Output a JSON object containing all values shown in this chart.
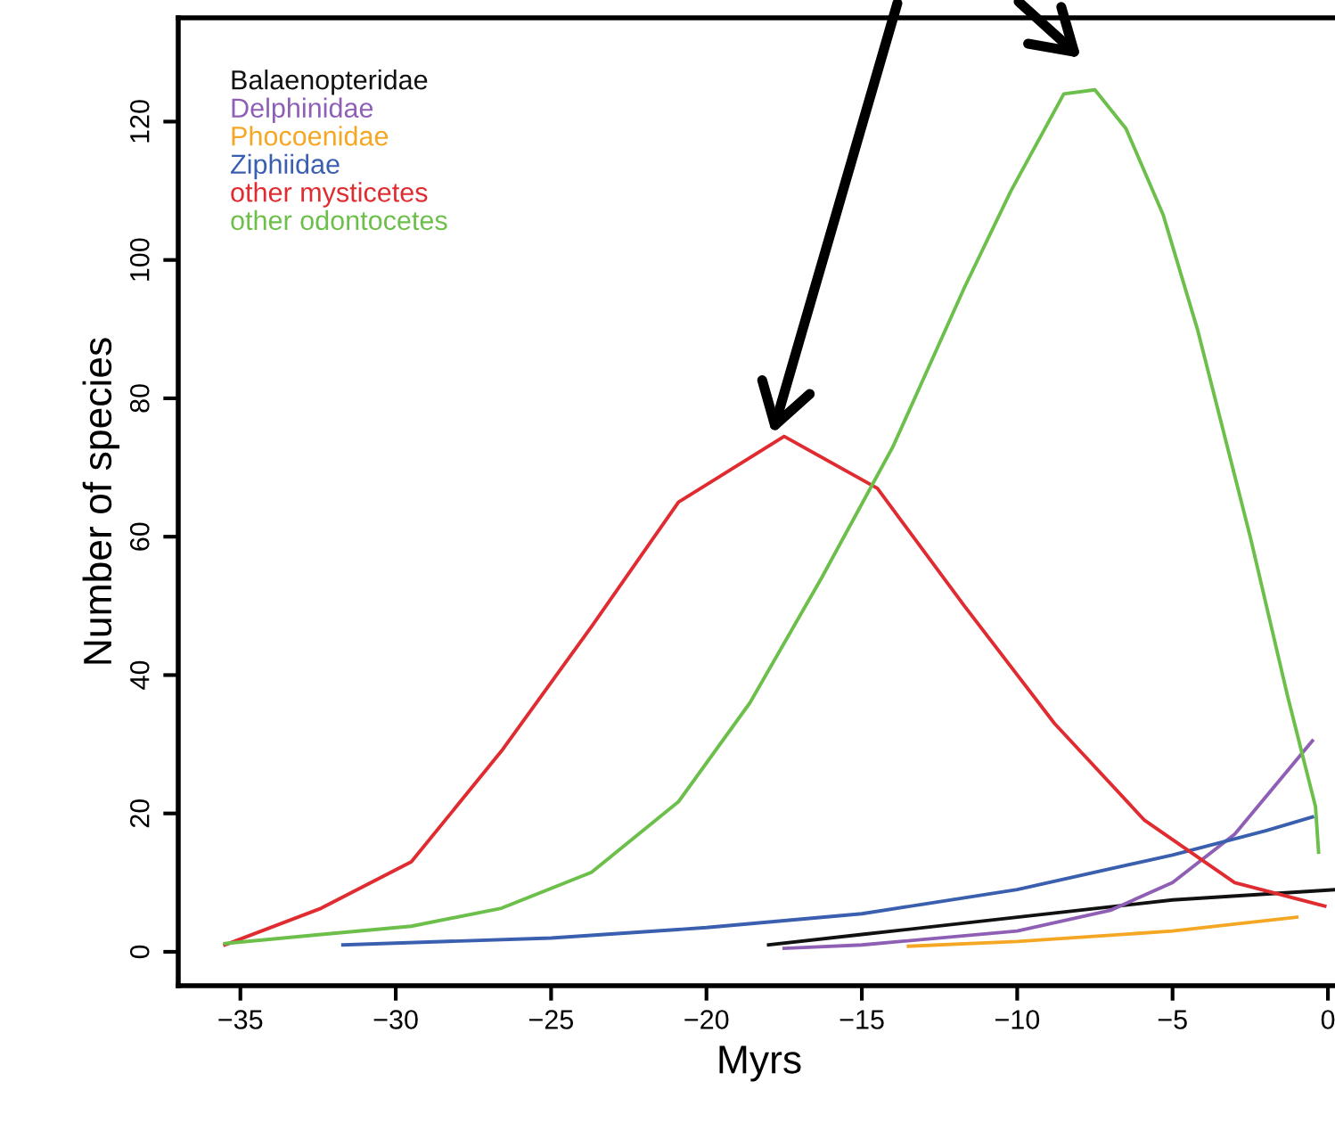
{
  "chart_data": {
    "type": "line",
    "xlabel": "Myrs",
    "ylabel": "Number of species",
    "xlim": [
      -37,
      0.4
    ],
    "ylim": [
      -4.9,
      135
    ],
    "xticks": [
      {
        "value": -35,
        "label": "−35"
      },
      {
        "value": -30,
        "label": "−30"
      },
      {
        "value": -25,
        "label": "−25"
      },
      {
        "value": -20,
        "label": "−20"
      },
      {
        "value": -15,
        "label": "−15"
      },
      {
        "value": -10,
        "label": "−10"
      },
      {
        "value": -5,
        "label": "−5"
      },
      0
    ],
    "yticks": [
      0,
      20,
      40,
      60,
      80,
      100,
      120
    ],
    "grid": false,
    "legend": "top left",
    "marker": "none",
    "line_style": "solid",
    "series": [
      {
        "name": "Balaenopteridae",
        "color": "#111111",
        "x": [
          -18,
          -15,
          -10,
          -5,
          0.3
        ],
        "values": [
          1,
          2.5,
          5,
          7.5,
          9
        ]
      },
      {
        "name": "Delphinidae",
        "color": "#8e5fb5",
        "x": [
          -17.5,
          -15,
          -10,
          -7,
          -5,
          -3,
          -0.5
        ],
        "values": [
          0.5,
          1,
          3,
          6,
          10,
          17,
          30.5
        ]
      },
      {
        "name": "Phocoenidae",
        "color": "#f5a623",
        "x": [
          -13.5,
          -10,
          -5,
          -1
        ],
        "values": [
          0.8,
          1.5,
          3,
          5
        ]
      },
      {
        "name": "Ziphiidae",
        "color": "#3a5fae",
        "x": [
          -31.7,
          -25,
          -20,
          -15,
          -10,
          -5,
          -2,
          -0.5
        ],
        "values": [
          1,
          2,
          3.5,
          5.5,
          9,
          14,
          17.5,
          19.5
        ]
      },
      {
        "name": "other mysticetes",
        "color": "#e02b30",
        "x": [
          -35.5,
          -32.4,
          -29.5,
          -26.6,
          -23.7,
          -20.9,
          -17.5,
          -14.5,
          -11.7,
          -8.8,
          -5.9,
          -3.0,
          -0.1
        ],
        "values": [
          1,
          6.3,
          13,
          29,
          47,
          65,
          74.5,
          67,
          50,
          33,
          19,
          10,
          6.6
        ]
      },
      {
        "name": "other odontocetes",
        "color": "#6cbf4a",
        "x": [
          -35.5,
          -32.4,
          -29.5,
          -26.6,
          -23.7,
          -20.9,
          -18.6,
          -16.3,
          -14,
          -11.7,
          -10.2,
          -8.5,
          -7.5,
          -6.5,
          -5.3,
          -4.2,
          -2.5,
          -1.3,
          -0.4,
          -0.3
        ],
        "values": [
          1.2,
          2.5,
          3.7,
          6.3,
          11.5,
          21.7,
          36,
          54,
          73,
          96,
          110,
          124,
          124.6,
          119,
          106.5,
          90,
          60,
          37,
          21,
          14.4
        ]
      }
    ]
  }
}
